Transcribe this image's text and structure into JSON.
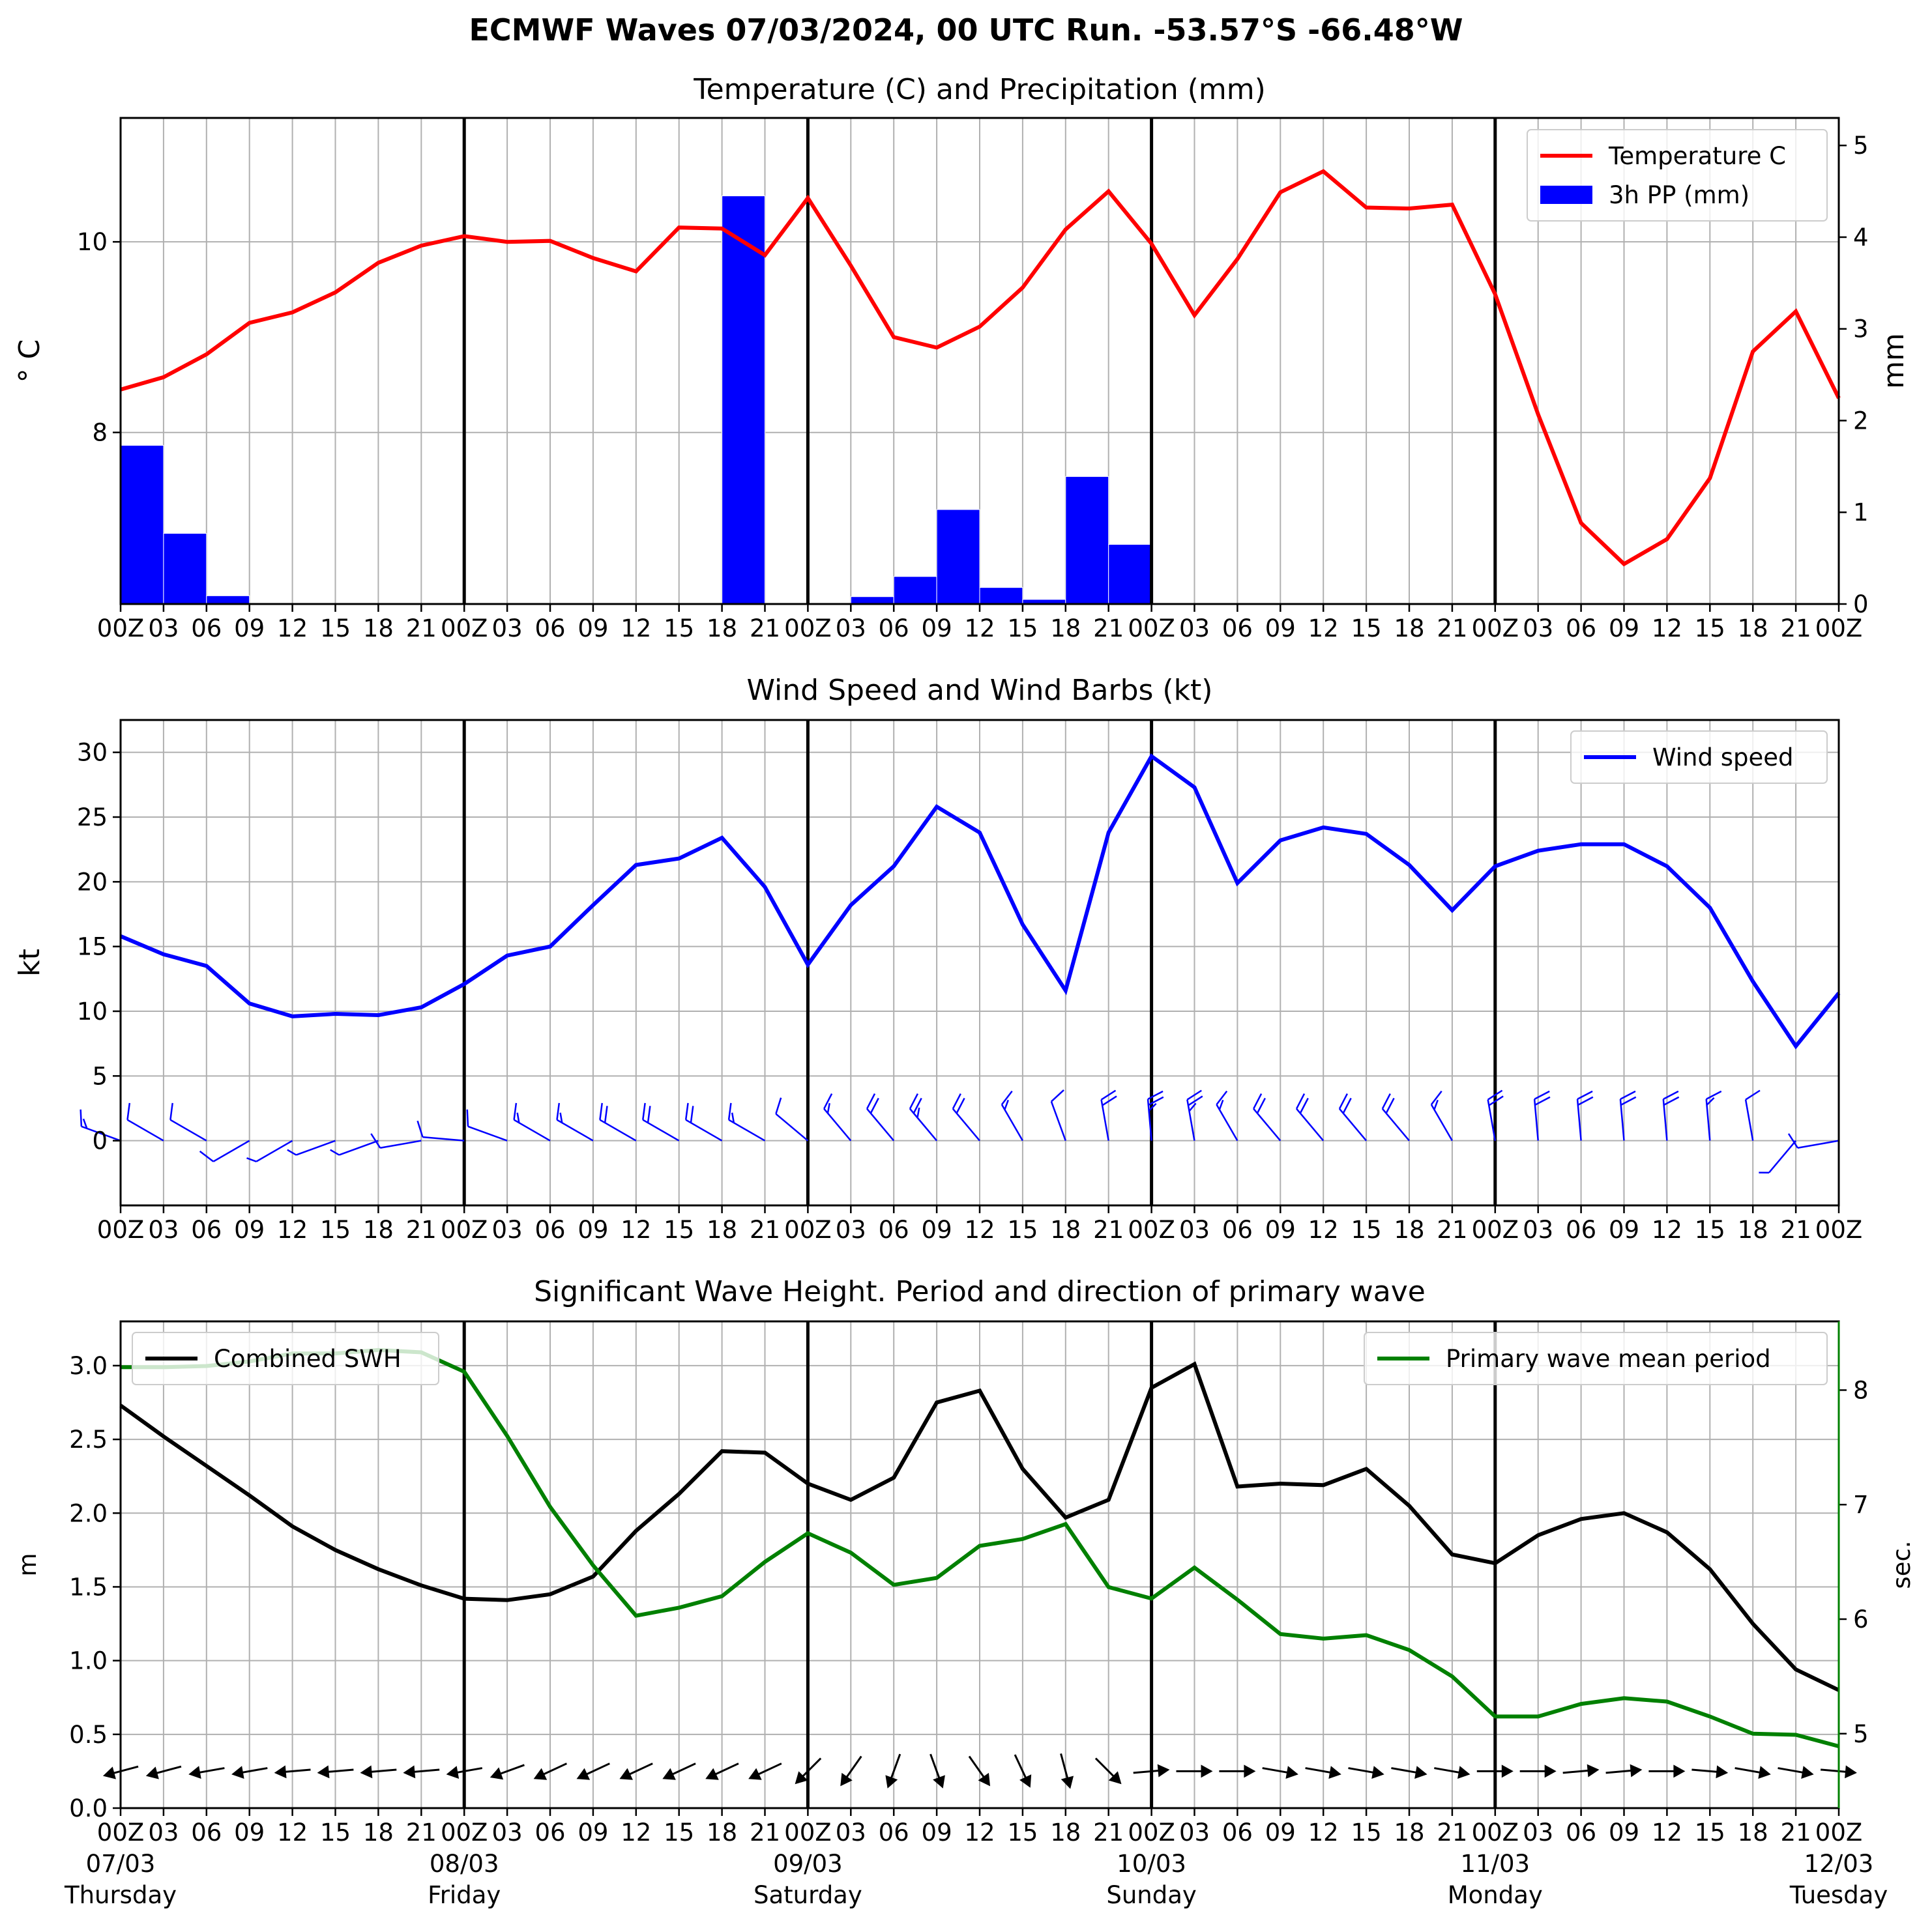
{
  "suptitle": "ECMWF Waves 07/03/2024, 00 UTC Run. -53.57°S -66.48°W",
  "x_tick_labels": [
    "00Z",
    "03",
    "06",
    "09",
    "12",
    "15",
    "18",
    "21",
    "00Z",
    "03",
    "06",
    "09",
    "12",
    "15",
    "18",
    "21",
    "00Z",
    "03",
    "06",
    "09",
    "12",
    "15",
    "18",
    "21",
    "00Z",
    "03",
    "06",
    "09",
    "12",
    "15",
    "18",
    "21",
    "00Z",
    "03",
    "06",
    "09",
    "12",
    "15",
    "18",
    "21",
    "00Z"
  ],
  "date_labels": [
    {
      "date": "07/03",
      "day": "Thursday"
    },
    {
      "date": "08/03",
      "day": "Friday"
    },
    {
      "date": "09/03",
      "day": "Saturday"
    },
    {
      "date": "10/03",
      "day": "Sunday"
    },
    {
      "date": "11/03",
      "day": "Monday"
    },
    {
      "date": "12/03",
      "day": "Tuesday"
    }
  ],
  "colors": {
    "temperature": "#ff0000",
    "precipitation": "#0000ff",
    "wind": "#0000ff",
    "swh": "#000000",
    "period": "#008000",
    "grid": "#b0b0b0",
    "day_separator": "#000000"
  },
  "chart_data": [
    {
      "type": "line",
      "title": "Temperature (C) and Precipitation (mm)",
      "x_unit": "hours since 07/03 00Z (3-hourly)",
      "ylabel": "° C",
      "ylabel_right": "mm",
      "ylim": [
        6.2,
        11.3
      ],
      "yticks": [
        8,
        10
      ],
      "ylim_right": [
        0,
        5.3
      ],
      "yticks_right": [
        0,
        1,
        2,
        3,
        4,
        5
      ],
      "grid": true,
      "legend_position": "top-right",
      "series": [
        {
          "name": "Temperature C",
          "axis": "left",
          "kind": "line",
          "values": [
            8.45,
            8.58,
            8.82,
            9.15,
            9.26,
            9.47,
            9.78,
            9.96,
            10.06,
            10.0,
            10.01,
            9.83,
            9.69,
            10.15,
            10.14,
            9.86,
            10.46,
            9.75,
            9.0,
            8.89,
            9.11,
            9.52,
            10.13,
            10.53,
            9.98,
            9.23,
            9.82,
            10.52,
            10.74,
            10.36,
            10.35,
            10.39,
            9.45,
            8.19,
            7.05,
            6.62,
            6.88,
            7.52,
            8.85,
            9.27,
            8.36
          ]
        },
        {
          "name": "3h PP (mm)",
          "axis": "right",
          "kind": "bar",
          "values": [
            1.73,
            0.77,
            0.09,
            0,
            0,
            0,
            0,
            0,
            0,
            0,
            0,
            0,
            0,
            0,
            4.45,
            0.01,
            0,
            0.08,
            0.3,
            1.03,
            0.18,
            0.05,
            1.39,
            0.65,
            0,
            0,
            0,
            0,
            0,
            0,
            0,
            0,
            0,
            0,
            0,
            0,
            0,
            0,
            0,
            0
          ]
        }
      ]
    },
    {
      "type": "line",
      "title": "Wind Speed and Wind Barbs (kt)",
      "x_unit": "hours since 07/03 00Z (3-hourly)",
      "ylabel": "kt",
      "ylim": [
        -5,
        32.5
      ],
      "yticks": [
        0,
        5,
        10,
        15,
        20,
        25,
        30
      ],
      "grid": true,
      "legend_position": "top-right",
      "series": [
        {
          "name": "Wind speed",
          "kind": "line",
          "values": [
            15.8,
            14.4,
            13.5,
            10.6,
            9.6,
            9.8,
            9.7,
            10.3,
            12.1,
            14.3,
            15.0,
            18.2,
            21.3,
            21.8,
            23.4,
            19.6,
            13.6,
            18.2,
            21.2,
            25.8,
            23.8,
            16.7,
            11.6,
            23.8,
            29.7,
            27.3,
            19.9,
            23.2,
            24.2,
            23.7,
            21.3,
            17.8,
            21.2,
            22.4,
            22.9,
            22.9,
            21.2,
            18.0,
            12.3,
            7.3,
            11.4
          ]
        }
      ],
      "wind_barbs": {
        "description": "wind barbs plotted along y = 0, direction the wind blows from in degrees",
        "direction_deg": [
          290,
          300,
          300,
          240,
          240,
          250,
          250,
          260,
          275,
          290,
          300,
          300,
          300,
          300,
          300,
          300,
          310,
          320,
          320,
          320,
          320,
          330,
          340,
          350,
          355,
          350,
          330,
          320,
          320,
          320,
          320,
          330,
          350,
          355,
          355,
          355,
          355,
          355,
          350,
          220,
          260
        ]
      }
    },
    {
      "type": "line",
      "title": "Significant Wave Height. Period and direction of primary wave",
      "x_unit": "hours since 07/03 00Z (3-hourly)",
      "ylabel": "m",
      "ylabel_right": "sec.",
      "ylim": [
        0,
        3.3
      ],
      "yticks": [
        0.0,
        0.5,
        1.0,
        1.5,
        2.0,
        2.5,
        3.0
      ],
      "ylim_right": [
        4.35,
        8.6
      ],
      "yticks_right": [
        5,
        6,
        7,
        8
      ],
      "grid": true,
      "legend_left": "top-left",
      "legend_right": "top-right",
      "series": [
        {
          "name": "Combined SWH",
          "axis": "left",
          "kind": "line",
          "values": [
            2.73,
            2.52,
            2.32,
            2.12,
            1.91,
            1.75,
            1.62,
            1.51,
            1.42,
            1.41,
            1.45,
            1.57,
            1.88,
            2.13,
            2.42,
            2.41,
            2.2,
            2.09,
            2.24,
            2.75,
            2.83,
            2.3,
            1.97,
            2.09,
            2.85,
            3.01,
            2.18,
            2.2,
            2.19,
            2.3,
            2.05,
            1.72,
            1.66,
            1.85,
            1.96,
            2.0,
            1.87,
            1.62,
            1.25,
            0.94,
            0.8
          ]
        },
        {
          "name": "Primary wave mean period",
          "axis": "right",
          "kind": "line",
          "values": [
            8.2,
            8.2,
            8.21,
            8.25,
            8.32,
            8.32,
            8.35,
            8.33,
            8.16,
            7.6,
            6.98,
            6.47,
            6.03,
            6.1,
            6.2,
            6.5,
            6.75,
            6.58,
            6.3,
            6.36,
            6.64,
            6.7,
            6.83,
            6.28,
            6.18,
            6.45,
            6.17,
            5.87,
            5.83,
            5.86,
            5.73,
            5.5,
            5.15,
            5.15,
            5.26,
            5.31,
            5.28,
            5.15,
            5.0,
            4.99,
            4.89
          ]
        }
      ],
      "wave_direction_arrows": {
        "description": "arrows plotted at y = 0.25 m, compass direction the primary wave travels toward in degrees",
        "direction_deg": [
          255,
          255,
          260,
          260,
          265,
          265,
          265,
          265,
          260,
          250,
          245,
          245,
          245,
          245,
          245,
          245,
          225,
          215,
          200,
          160,
          145,
          155,
          165,
          135,
          85,
          90,
          90,
          100,
          100,
          100,
          100,
          100,
          90,
          90,
          85,
          85,
          90,
          95,
          100,
          100,
          95
        ]
      }
    }
  ]
}
